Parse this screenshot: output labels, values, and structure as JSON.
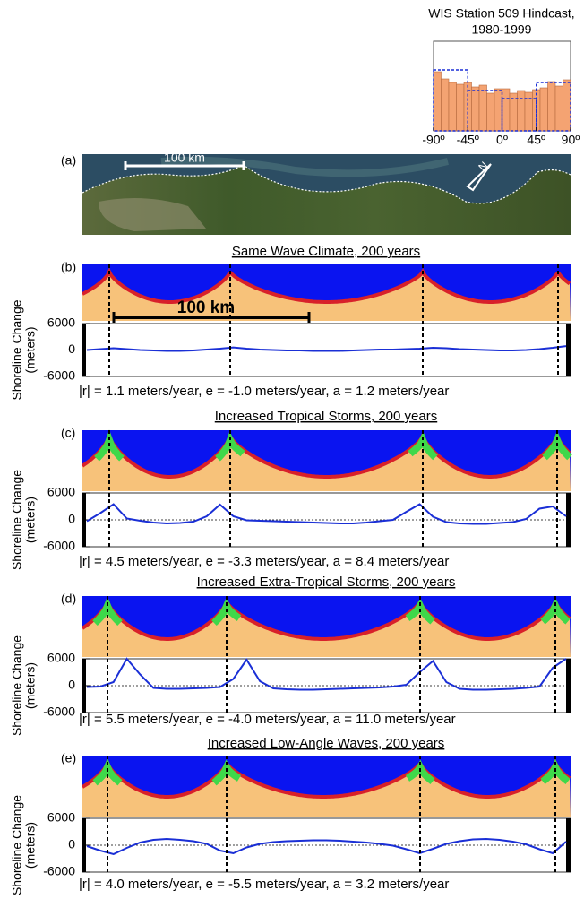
{
  "map": {
    "label": "(a)",
    "scale_label": "100 km",
    "north": "N"
  },
  "chart_data": [
    {
      "type": "histogram",
      "title": [
        "WIS Station 509 Hindcast,",
        "1980-1999"
      ],
      "bins": [
        -90,
        -80,
        -70,
        -60,
        -50,
        -40,
        -30,
        -20,
        -10,
        0,
        10,
        20,
        30,
        40,
        50,
        60,
        70,
        80,
        90
      ],
      "values": [
        66,
        58,
        54,
        52,
        54,
        49,
        51,
        42,
        47,
        47,
        42,
        45,
        43,
        46,
        48,
        55,
        50,
        57
      ],
      "color": "#f4a372",
      "coarse_bins": [
        -90,
        -45,
        0,
        45,
        90
      ],
      "coarse_values": [
        68,
        45,
        36,
        54
      ],
      "coarse_color": "#1a2fd6",
      "xlim": [
        -90,
        90
      ],
      "ylim": [
        0,
        100
      ],
      "xticks": [
        {
          "value": -90,
          "label": "-90º"
        },
        {
          "value": -45,
          "label": "-45º"
        },
        {
          "value": 0,
          "label": "0º"
        },
        {
          "value": 45,
          "label": "45º"
        },
        {
          "value": 90,
          "label": "90º"
        }
      ]
    },
    {
      "type": "line",
      "panel": "(b)",
      "title": "Same Wave Climate, 200 years",
      "scale_label": "100 km",
      "ylabel": [
        "Shoreline Change",
        "(meters)"
      ],
      "ylim": [
        -6000,
        6000
      ],
      "yticks": [
        6000,
        0,
        -6000
      ],
      "color": "#1a2fd6",
      "values": [
        0,
        200,
        400,
        200,
        0,
        -100,
        -200,
        -200,
        -100,
        100,
        300,
        600,
        300,
        100,
        0,
        -100,
        -100,
        -200,
        -200,
        -200,
        -100,
        0,
        100,
        100,
        200,
        300,
        500,
        400,
        200,
        100,
        0,
        -100,
        -100,
        0,
        200,
        500,
        900
      ],
      "stats": "|r| = 1.1 meters/year, e = -1.0 meters/year, a = 1.2 meters/year"
    },
    {
      "type": "line",
      "panel": "(c)",
      "title": "Increased Tropical Storms, 200 years",
      "ylabel": [
        "Shoreline Change",
        "(meters)"
      ],
      "ylim": [
        -6000,
        6000
      ],
      "yticks": [
        6000,
        0,
        -6000
      ],
      "color": "#1a2fd6",
      "values": [
        -300,
        1500,
        3500,
        300,
        -200,
        -600,
        -800,
        -700,
        -400,
        800,
        3400,
        800,
        -100,
        -200,
        -300,
        -400,
        -500,
        -600,
        -700,
        -800,
        -800,
        -600,
        -300,
        0,
        1800,
        3500,
        700,
        -500,
        -800,
        -900,
        -900,
        -700,
        -500,
        200,
        2500,
        3000,
        800
      ],
      "stats": "|r| = 4.5 meters/year, e = -3.3 meters/year, a = 8.4 meters/year"
    },
    {
      "type": "line",
      "panel": "(d)",
      "title": "Increased Extra-Tropical Storms, 200 years",
      "ylabel": [
        "Shoreline Change",
        "(meters)"
      ],
      "ylim": [
        -6000,
        6000
      ],
      "yticks": [
        6000,
        0,
        -6000
      ],
      "color": "#1a2fd6",
      "values": [
        -300,
        -200,
        800,
        6000,
        2500,
        -500,
        -700,
        -700,
        -600,
        -500,
        -300,
        1500,
        5800,
        1000,
        -600,
        -800,
        -900,
        -900,
        -800,
        -700,
        -600,
        -500,
        -400,
        -200,
        200,
        3000,
        5500,
        800,
        -700,
        -900,
        -900,
        -800,
        -700,
        -500,
        -200,
        4000,
        6000
      ],
      "stats": "|r| = 5.5 meters/year, e = -4.0 meters/year, a = 11.0 meters/year"
    },
    {
      "type": "line",
      "panel": "(e)",
      "title": "Increased Low-Angle Waves, 200 years",
      "ylabel": [
        "Shoreline Change",
        "(meters)"
      ],
      "ylim": [
        -6000,
        6000
      ],
      "yticks": [
        6000,
        0,
        -6000
      ],
      "color": "#1a2fd6",
      "values": [
        -200,
        -1200,
        -2000,
        -600,
        600,
        1200,
        1400,
        1200,
        900,
        300,
        -1200,
        -1800,
        -500,
        300,
        700,
        900,
        1000,
        1100,
        1100,
        1000,
        800,
        600,
        300,
        -100,
        -900,
        -1800,
        -800,
        300,
        900,
        1300,
        1400,
        1200,
        800,
        200,
        -900,
        -1800,
        800
      ],
      "stats": "|r| = 4.0 meters/year, e = -5.5 meters/year, a = 3.2 meters/year"
    }
  ]
}
